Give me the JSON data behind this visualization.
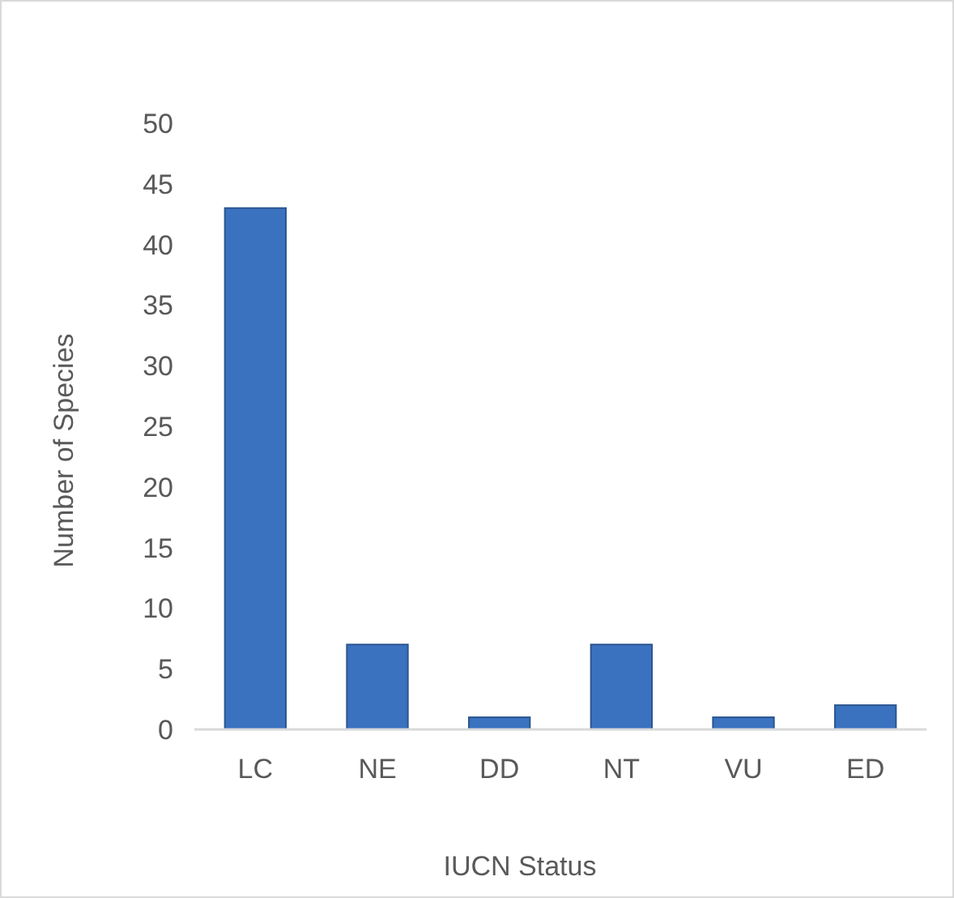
{
  "chart_data": {
    "type": "bar",
    "xlabel": "IUCN Status",
    "ylabel": "Number of Species",
    "categories": [
      "LC",
      "NE",
      "DD",
      "NT",
      "VU",
      "ED"
    ],
    "values": [
      43,
      7,
      1,
      7,
      1,
      2
    ],
    "color": "#3a72c0",
    "ylim": [
      0,
      50
    ],
    "yticks": [
      0,
      5,
      10,
      15,
      20,
      25,
      30,
      35,
      40,
      45,
      50
    ],
    "grid": false
  }
}
